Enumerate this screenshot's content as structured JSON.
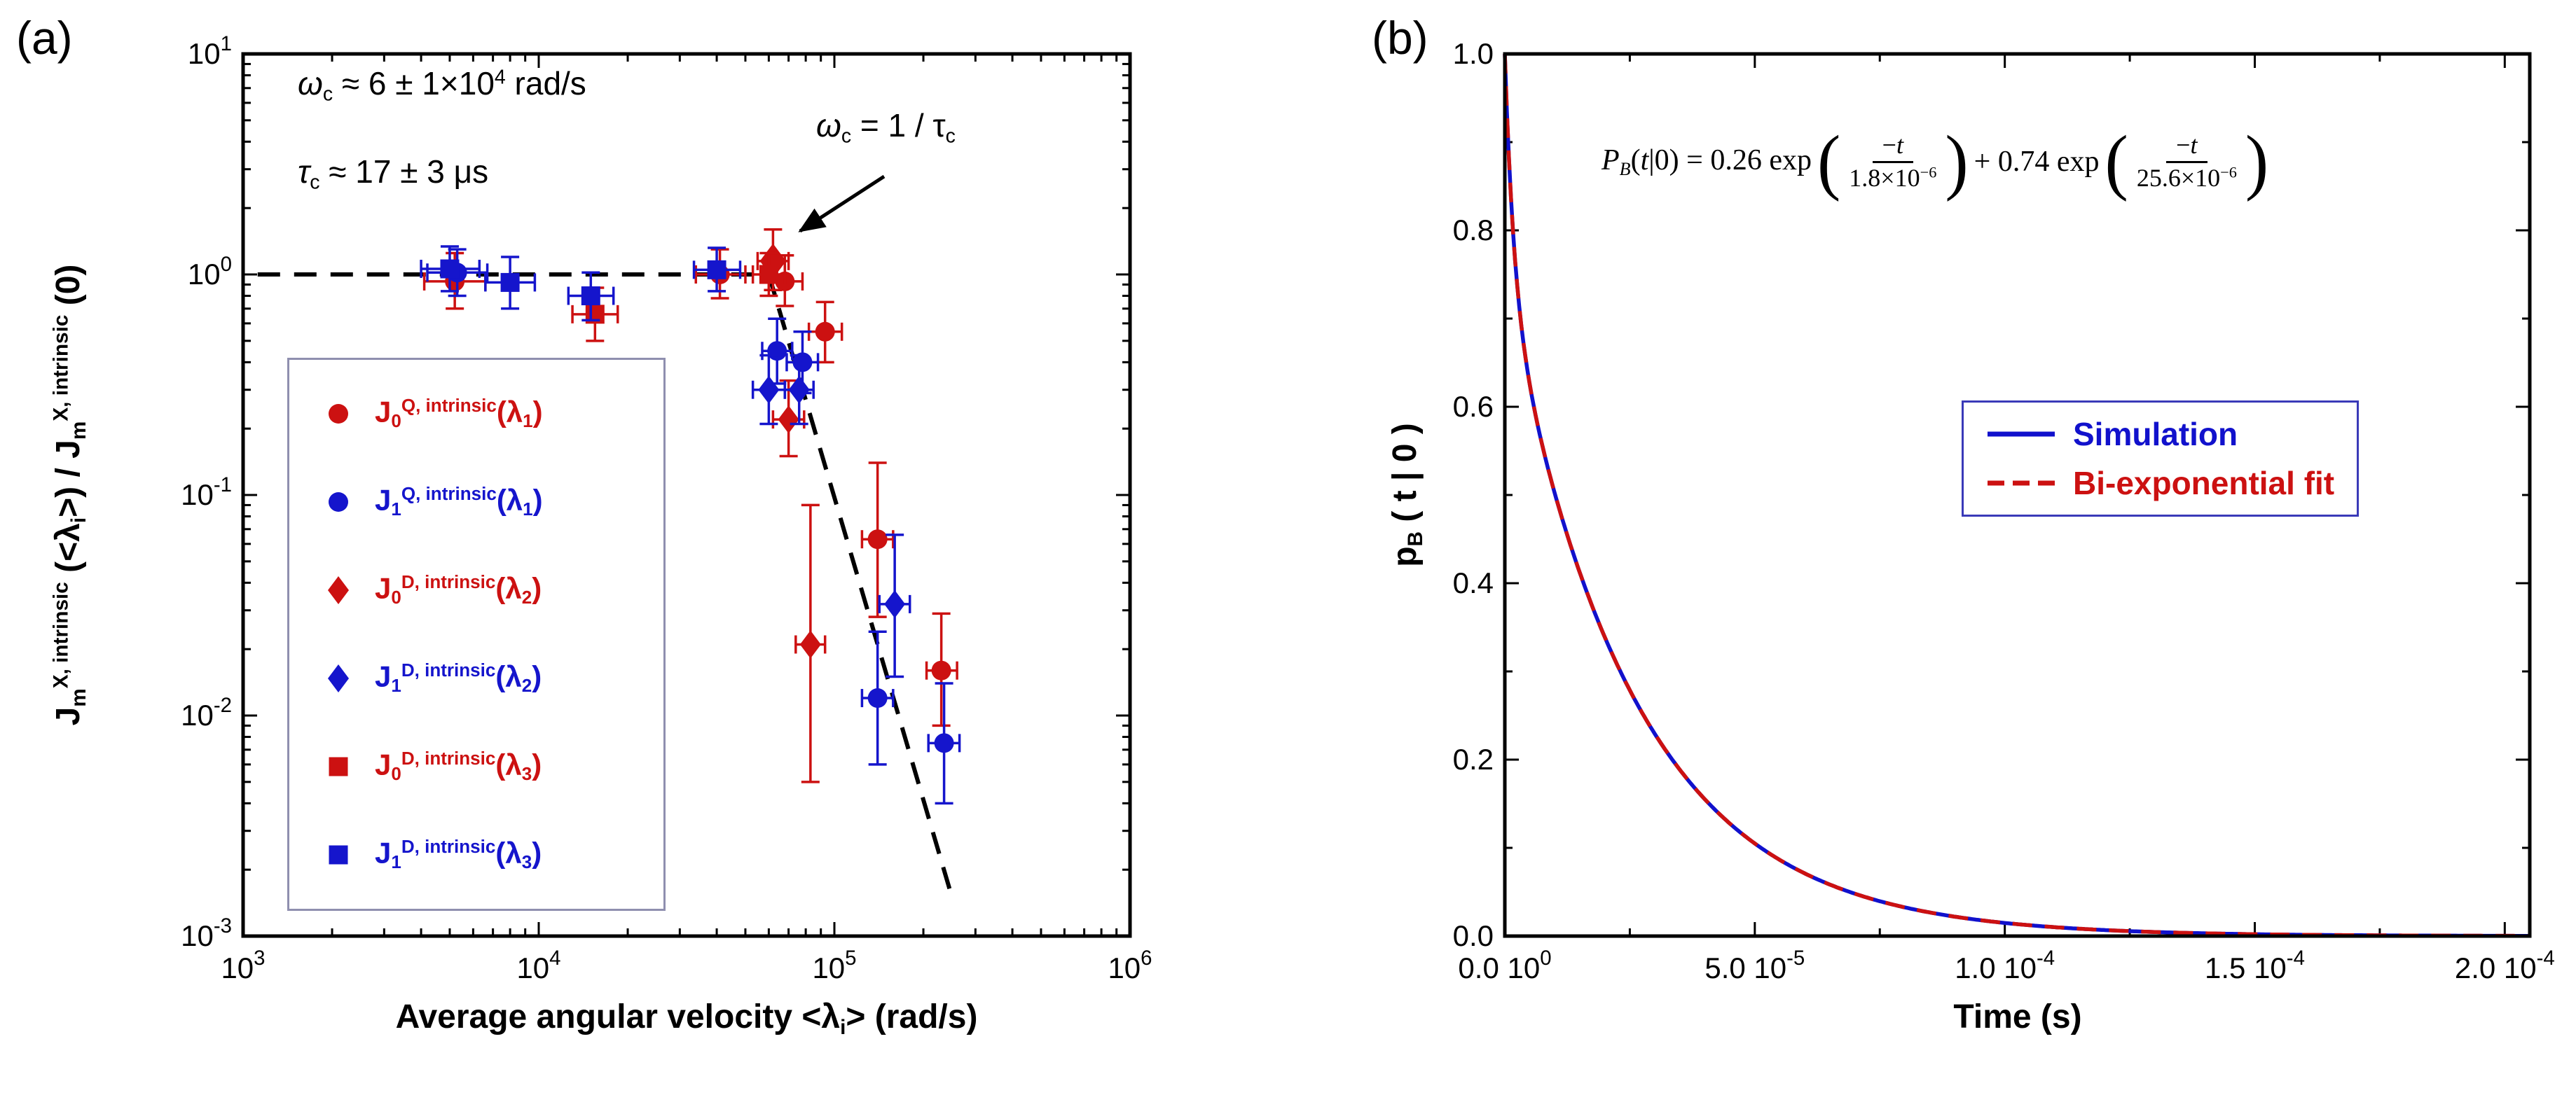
{
  "figure": {
    "background": "#ffffff"
  },
  "panels": {
    "a": {
      "corner_label": "(a)",
      "xlabel_parts": [
        [
          "Average angular velocity  <λ",
          "n"
        ],
        [
          "i",
          "sub"
        ],
        [
          ">   (rad/s)",
          "n"
        ]
      ],
      "ylabel_parts": [
        [
          "J",
          "n"
        ],
        [
          "m",
          "sub"
        ],
        [
          "X, intrinsic",
          "sup"
        ],
        [
          " (<λ",
          "n"
        ],
        [
          "i",
          "sub"
        ],
        [
          ">)  /  J",
          "n"
        ],
        [
          "m",
          "sub"
        ],
        [
          "X, intrinsic",
          "sup"
        ],
        [
          " (0)",
          "n"
        ]
      ],
      "annotation_omega": [
        [
          "ω",
          "it"
        ],
        [
          "c",
          "sub"
        ],
        [
          " ≈ 6 ± 1×10",
          "n"
        ],
        [
          "4",
          "sup"
        ],
        [
          "  rad/s",
          "n"
        ]
      ],
      "annotation_tau": [
        [
          "τ",
          "it"
        ],
        [
          "c",
          "sub"
        ],
        [
          " ≈ 17 ± 3 μs",
          "n"
        ]
      ],
      "annotation_arrow": [
        [
          "ω",
          "it"
        ],
        [
          "c",
          "sub"
        ],
        [
          " = 1 / τ",
          "n"
        ],
        [
          "c",
          "sub"
        ]
      ],
      "legend": [
        {
          "marker": "circle",
          "color": "#CC1111",
          "label_parts": [
            [
              "J",
              "n"
            ],
            [
              "0",
              "sub"
            ],
            [
              "Q, intrinsic",
              "sup"
            ],
            [
              "(λ",
              "n"
            ],
            [
              "1",
              "sub"
            ],
            [
              ")",
              "n"
            ]
          ]
        },
        {
          "marker": "circle",
          "color": "#1515CC",
          "label_parts": [
            [
              "J",
              "n"
            ],
            [
              "1",
              "sub"
            ],
            [
              "Q, intrinsic",
              "sup"
            ],
            [
              "(λ",
              "n"
            ],
            [
              "1",
              "sub"
            ],
            [
              ")",
              "n"
            ]
          ]
        },
        {
          "marker": "diamond",
          "color": "#CC1111",
          "label_parts": [
            [
              "J",
              "n"
            ],
            [
              "0",
              "sub"
            ],
            [
              "D, intrinsic",
              "sup"
            ],
            [
              "(λ",
              "n"
            ],
            [
              "2",
              "sub"
            ],
            [
              ")",
              "n"
            ]
          ]
        },
        {
          "marker": "diamond",
          "color": "#1515CC",
          "label_parts": [
            [
              "J",
              "n"
            ],
            [
              "1",
              "sub"
            ],
            [
              "D, intrinsic",
              "sup"
            ],
            [
              "(λ",
              "n"
            ],
            [
              "2",
              "sub"
            ],
            [
              ")",
              "n"
            ]
          ]
        },
        {
          "marker": "square",
          "color": "#CC1111",
          "label_parts": [
            [
              "J",
              "n"
            ],
            [
              "0",
              "sub"
            ],
            [
              "D, intrinsic",
              "sup"
            ],
            [
              "(λ",
              "n"
            ],
            [
              "3",
              "sub"
            ],
            [
              ")",
              "n"
            ]
          ]
        },
        {
          "marker": "square",
          "color": "#1515CC",
          "label_parts": [
            [
              "J",
              "n"
            ],
            [
              "1",
              "sub"
            ],
            [
              "D, intrinsic",
              "sup"
            ],
            [
              "(λ",
              "n"
            ],
            [
              "3",
              "sub"
            ],
            [
              ")",
              "n"
            ]
          ]
        }
      ]
    },
    "b": {
      "corner_label": "(b)",
      "xlabel": "Time (s)",
      "ylabel_parts": [
        [
          "p",
          "n"
        ],
        [
          "B",
          "sub"
        ],
        [
          " ( t | 0 )",
          "n"
        ]
      ],
      "equation": {
        "lead": [
          [
            "P",
            "it"
          ],
          [
            "B",
            "subit"
          ],
          [
            "(",
            "n"
          ],
          [
            "t",
            "it"
          ],
          [
            "|",
            "n"
          ],
          [
            "0",
            "n"
          ],
          [
            ")",
            "n"
          ],
          [
            " = 0.26 exp",
            "n"
          ]
        ],
        "lparen": "(",
        "rparen": ")",
        "num1": [
          [
            "−",
            "n"
          ],
          [
            "t",
            "it"
          ]
        ],
        "den1": [
          [
            "1.8×10",
            "n"
          ],
          [
            "−6",
            "sup"
          ]
        ],
        "mid": [
          [
            "+ 0.74 exp",
            "n"
          ]
        ],
        "num2": [
          [
            "−",
            "n"
          ],
          [
            "t",
            "it"
          ]
        ],
        "den2": [
          [
            "25.6×10",
            "n"
          ],
          [
            "−6",
            "sup"
          ]
        ]
      },
      "legend": [
        {
          "label": "Simulation",
          "color": "#1111CC",
          "style": "solid"
        },
        {
          "label": "Bi-exponential fit",
          "color": "#CC1111",
          "style": "dashed"
        }
      ]
    }
  },
  "chart_data": [
    {
      "panel": "a",
      "type": "scatter",
      "x_scale": "log",
      "y_scale": "log",
      "xlim": [
        1000,
        1000000
      ],
      "ylim": [
        0.001,
        10
      ],
      "xlabel": "Average angular velocity <λ_i> (rad/s)",
      "ylabel": "J_m^{X, intrinsic}(<λ_i>) / J_m^{X, intrinsic}(0)",
      "annotations": [
        "ω_c ≈ 6 ± 1×10^4 rad/s",
        "τ_c ≈ 17 ± 3 μs",
        "ω_c = 1 / τ_c"
      ],
      "guide_line": {
        "style": "dashed",
        "points": [
          [
            1120,
            1.0
          ],
          [
            60000,
            1.0
          ],
          [
            250000,
            0.0015
          ]
        ]
      },
      "series": [
        {
          "name": "J0-Q-intrinsic-lambda1",
          "marker": "circle",
          "color": "#CC1111",
          "points": [
            [
              5200,
              0.93,
              0.7,
              1.25,
              4100,
              6600
            ],
            [
              41000,
              1.0,
              0.78,
              1.3,
              34000,
              50000
            ],
            [
              68000,
              0.93,
              0.72,
              1.22,
              60000,
              78000
            ],
            [
              93000,
              0.55,
              0.4,
              0.75,
              82000,
              106000
            ],
            [
              140000,
              0.063,
              0.028,
              0.14,
              124000,
              158000
            ],
            [
              230000,
              0.016,
              0.009,
              0.029,
              205000,
              260000
            ]
          ]
        },
        {
          "name": "J1-Q-intrinsic-lambda1",
          "marker": "circle",
          "color": "#1515CC",
          "points": [
            [
              5300,
              1.02,
              0.8,
              1.3,
              4200,
              6700
            ],
            [
              64000,
              0.45,
              0.32,
              0.63,
              57000,
              72000
            ],
            [
              78000,
              0.4,
              0.29,
              0.55,
              69000,
              88000
            ],
            [
              140000,
              0.012,
              0.006,
              0.024,
              124000,
              158000
            ],
            [
              235000,
              0.0075,
              0.004,
              0.014,
              208000,
              265000
            ]
          ]
        },
        {
          "name": "J0-D-intrinsic-lambda2",
          "marker": "diamond",
          "color": "#CC1111",
          "points": [
            [
              62000,
              1.15,
              0.85,
              1.6,
              55000,
              70000,
              1.25
            ],
            [
              70000,
              0.22,
              0.15,
              0.33,
              62000,
              79000
            ],
            [
              83000,
              0.021,
              0.005,
              0.09,
              74000,
              93000
            ]
          ]
        },
        {
          "name": "J1-D-intrinsic-lambda2",
          "marker": "diamond",
          "color": "#1515CC",
          "points": [
            [
              60000,
              0.3,
              0.21,
              0.43,
              53000,
              68000
            ],
            [
              76000,
              0.3,
              0.21,
              0.43,
              68000,
              85000
            ],
            [
              160000,
              0.032,
              0.015,
              0.066,
              142000,
              180000
            ]
          ]
        },
        {
          "name": "J0-D-intrinsic-lambda3",
          "marker": "square",
          "color": "#CC1111",
          "points": [
            [
              15500,
              0.66,
              0.5,
              0.87,
              13000,
              18500
            ],
            [
              60000,
              1.0,
              0.8,
              1.25,
              53000,
              68000
            ]
          ]
        },
        {
          "name": "J1-D-intrinsic-lambda3",
          "marker": "square",
          "color": "#1515CC",
          "points": [
            [
              5000,
              1.06,
              0.84,
              1.34,
              4000,
              6300
            ],
            [
              8000,
              0.92,
              0.7,
              1.2,
              6600,
              9700
            ],
            [
              15000,
              0.8,
              0.62,
              1.02,
              12600,
              17900
            ],
            [
              40000,
              1.05,
              0.84,
              1.32,
              33500,
              48000
            ]
          ]
        }
      ]
    },
    {
      "panel": "b",
      "type": "line",
      "xlim": [
        0,
        0.000205
      ],
      "ylim": [
        0,
        1.0
      ],
      "xlabel": "Time (s)",
      "ylabel": "p_B(t|0)",
      "xticks": [
        {
          "v": 0,
          "mantissa": "0.0",
          "exp": "0"
        },
        {
          "v": 5e-05,
          "mantissa": "5.0",
          "exp": "-5"
        },
        {
          "v": 0.0001,
          "mantissa": "1.0",
          "exp": "-4"
        },
        {
          "v": 0.00015,
          "mantissa": "1.5",
          "exp": "-4"
        },
        {
          "v": 0.0002,
          "mantissa": "2.0",
          "exp": "-4"
        }
      ],
      "yticks": [
        0,
        0.2,
        0.4,
        0.6,
        0.8,
        1.0
      ],
      "fit_equation": "P_B(t|0) = 0.26 exp(-t/1.8e-6) + 0.74 exp(-t/25.6e-6)",
      "fit_params": {
        "a1": 0.26,
        "tau1": 1.8e-06,
        "a2": 0.74,
        "tau2": 2.56e-05
      },
      "series": [
        {
          "name": "Simulation",
          "color": "#1111CC",
          "style": "solid"
        },
        {
          "name": "Bi-exponential fit",
          "color": "#CC1111",
          "style": "dashed"
        }
      ]
    }
  ]
}
